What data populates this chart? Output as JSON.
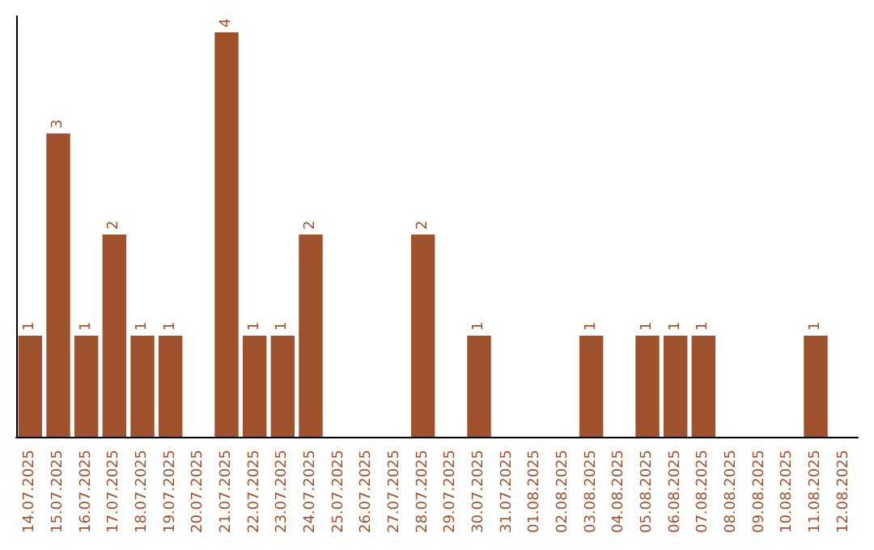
{
  "chart_data": {
    "type": "bar",
    "categories": [
      "14.07.2025",
      "15.07.2025",
      "16.07.2025",
      "17.07.2025",
      "18.07.2025",
      "19.07.2025",
      "20.07.2025",
      "21.07.2025",
      "22.07.2025",
      "23.07.2025",
      "24.07.2025",
      "25.07.2025",
      "26.07.2025",
      "27.07.2025",
      "28.07.2025",
      "29.07.2025",
      "30.07.2025",
      "31.07.2025",
      "01.08.2025",
      "02.08.2025",
      "03.08.2025",
      "04.08.2025",
      "05.08.2025",
      "06.08.2025",
      "07.08.2025",
      "08.08.2025",
      "09.08.2025",
      "10.08.2025",
      "11.08.2025",
      "12.08.2025"
    ],
    "values": [
      1,
      3,
      1,
      2,
      1,
      1,
      0,
      4,
      1,
      1,
      2,
      0,
      0,
      0,
      2,
      0,
      1,
      0,
      0,
      0,
      1,
      0,
      1,
      1,
      1,
      0,
      0,
      0,
      1,
      0
    ],
    "value_labels": [
      "1",
      "3",
      "1",
      "2",
      "1",
      "1",
      null,
      "4",
      "1",
      "1",
      "2",
      null,
      null,
      null,
      "2",
      null,
      "1",
      null,
      null,
      null,
      "1",
      null,
      "1",
      "1",
      "1",
      null,
      null,
      null,
      "1",
      null
    ],
    "color": "#a0522d",
    "tick_labels": "x",
    "grid": false
  }
}
